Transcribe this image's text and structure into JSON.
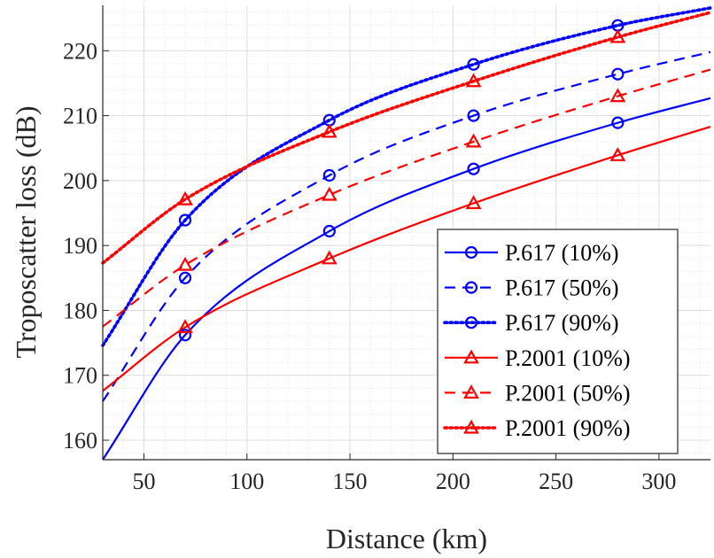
{
  "chart_data": {
    "type": "line",
    "xlabel": "Distance (km)",
    "ylabel": "Troposcatter loss (dB)",
    "xlim": [
      30,
      325
    ],
    "ylim": [
      157,
      227
    ],
    "xticks": [
      50,
      100,
      150,
      200,
      250,
      300
    ],
    "yticks": [
      160,
      170,
      180,
      190,
      200,
      210,
      220
    ],
    "x_tick_labels": [
      "50",
      "100",
      "150",
      "200",
      "250",
      "300"
    ],
    "y_tick_labels": [
      "160",
      "170",
      "180",
      "190",
      "200",
      "210",
      "220"
    ],
    "grid": true,
    "legend_position": "bottom-right",
    "marker_x": [
      70,
      140,
      210,
      280
    ],
    "series": [
      {
        "name": "P.617 (10%)",
        "color": "#0000ff",
        "line_style": "solid",
        "marker": "circle",
        "x": [
          30,
          70,
          140,
          210,
          280,
          325
        ],
        "y": [
          157,
          176.2,
          192.2,
          201.8,
          208.9,
          212.7
        ]
      },
      {
        "name": "P.617 (50%)",
        "color": "#0000ff",
        "line_style": "dashed",
        "marker": "circle",
        "x": [
          30,
          70,
          140,
          210,
          280,
          325
        ],
        "y": [
          166,
          185,
          200.8,
          210,
          216.4,
          219.8
        ]
      },
      {
        "name": "P.617 (90%)",
        "color": "#0000ff",
        "line_style": "dotted",
        "marker": "circle",
        "x": [
          30,
          70,
          140,
          210,
          280,
          325
        ],
        "y": [
          174.6,
          193.9,
          209.3,
          217.9,
          223.9,
          226.6
        ]
      },
      {
        "name": "P.2001 (10%)",
        "color": "#ff0000",
        "line_style": "solid",
        "marker": "triangle",
        "x": [
          30,
          70,
          140,
          210,
          280,
          325
        ],
        "y": [
          167.6,
          177.4,
          188,
          196.5,
          203.9,
          208.3
        ]
      },
      {
        "name": "P.2001 (50%)",
        "color": "#ff0000",
        "line_style": "dashed",
        "marker": "triangle",
        "x": [
          30,
          70,
          140,
          210,
          280,
          325
        ],
        "y": [
          177.5,
          187,
          197.8,
          206,
          213,
          217.1
        ]
      },
      {
        "name": "P.2001 (90%)",
        "color": "#ff0000",
        "line_style": "dotted",
        "marker": "triangle",
        "x": [
          30,
          70,
          140,
          210,
          280,
          325
        ],
        "y": [
          187.3,
          197.1,
          207.5,
          215.3,
          222.1,
          225.9
        ]
      }
    ]
  }
}
